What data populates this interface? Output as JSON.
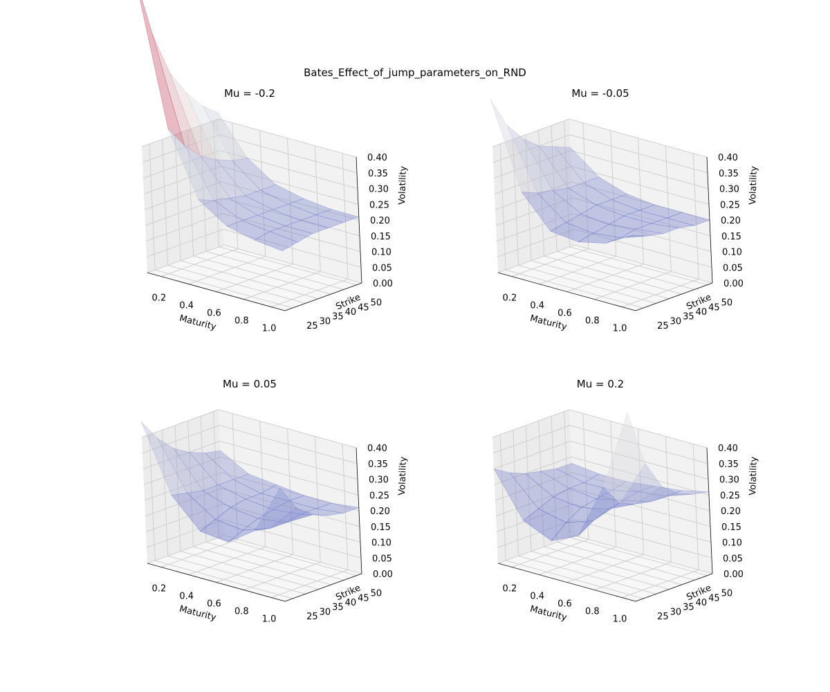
{
  "figure": {
    "suptitle": "Bates_Effect_of_jump_parameters_on_RND"
  },
  "axis_labels": {
    "x": "Maturity",
    "y": "Strike",
    "z": "Volatility"
  },
  "colors": {
    "pane": "#f2f2f2",
    "grid": "#cfcfcf",
    "low": "#3b4cc0",
    "high": "#b40426"
  },
  "chart_data": [
    {
      "type": "surface",
      "title": "Mu = -0.2",
      "xlabel": "Maturity",
      "ylabel": "Strike",
      "zlabel": "Volatility",
      "xlim": [
        0.1,
        1.1
      ],
      "ylim": [
        22,
        52
      ],
      "zlim": [
        0,
        0.4
      ],
      "xticks": [
        "0.2",
        "0.4",
        "0.6",
        "0.8",
        "1.0"
      ],
      "yticks": [
        "25",
        "30",
        "35",
        "40",
        "45",
        "50"
      ],
      "zticks": [
        "0.00",
        "0.05",
        "0.10",
        "0.15",
        "0.20",
        "0.25",
        "0.30",
        "0.35",
        "0.40"
      ],
      "maturity": [
        0.1,
        0.3,
        0.5,
        0.7,
        0.9,
        1.1
      ],
      "strike": [
        22,
        28,
        34,
        40,
        46,
        52
      ],
      "volatility": [
        [
          0.95,
          0.74,
          0.6,
          0.52,
          0.46,
          0.42
        ],
        [
          0.48,
          0.41,
          0.36,
          0.33,
          0.31,
          0.3
        ],
        [
          0.28,
          0.26,
          0.25,
          0.24,
          0.24,
          0.24
        ],
        [
          0.22,
          0.22,
          0.22,
          0.22,
          0.22,
          0.22
        ],
        [
          0.2,
          0.21,
          0.21,
          0.21,
          0.21,
          0.21
        ],
        [
          0.19,
          0.2,
          0.21,
          0.21,
          0.21,
          0.21
        ]
      ]
    },
    {
      "type": "surface",
      "title": "Mu = -0.05",
      "xlabel": "Maturity",
      "ylabel": "Strike",
      "zlabel": "Volatility",
      "xlim": [
        0.1,
        1.1
      ],
      "ylim": [
        22,
        52
      ],
      "zlim": [
        0,
        0.4
      ],
      "xticks": [
        "0.2",
        "0.4",
        "0.6",
        "0.8",
        "1.0"
      ],
      "yticks": [
        "25",
        "30",
        "35",
        "40",
        "45",
        "50"
      ],
      "zticks": [
        "0.00",
        "0.05",
        "0.10",
        "0.15",
        "0.20",
        "0.25",
        "0.30",
        "0.35",
        "0.40"
      ],
      "maturity": [
        0.1,
        0.3,
        0.5,
        0.7,
        0.9,
        1.1
      ],
      "strike": [
        22,
        28,
        34,
        40,
        46,
        52
      ],
      "volatility": [
        [
          0.55,
          0.45,
          0.39,
          0.35,
          0.33,
          0.31
        ],
        [
          0.28,
          0.26,
          0.25,
          0.24,
          0.24,
          0.24
        ],
        [
          0.18,
          0.19,
          0.2,
          0.21,
          0.21,
          0.21
        ],
        [
          0.17,
          0.18,
          0.19,
          0.2,
          0.2,
          0.2
        ],
        [
          0.19,
          0.19,
          0.2,
          0.2,
          0.2,
          0.2
        ],
        [
          0.24,
          0.22,
          0.21,
          0.21,
          0.2,
          0.2
        ]
      ]
    },
    {
      "type": "surface",
      "title": "Mu = 0.05",
      "xlabel": "Maturity",
      "ylabel": "Strike",
      "zlabel": "Volatility",
      "xlim": [
        0.1,
        1.1
      ],
      "ylim": [
        22,
        52
      ],
      "zlim": [
        0,
        0.4
      ],
      "xticks": [
        "0.2",
        "0.4",
        "0.6",
        "0.8",
        "1.0"
      ],
      "yticks": [
        "25",
        "30",
        "35",
        "40",
        "45",
        "50"
      ],
      "zticks": [
        "0.00",
        "0.05",
        "0.10",
        "0.15",
        "0.20",
        "0.25",
        "0.30",
        "0.35",
        "0.40"
      ],
      "maturity": [
        0.1,
        0.3,
        0.5,
        0.7,
        0.9,
        1.1
      ],
      "strike": [
        22,
        28,
        34,
        40,
        46,
        52
      ],
      "volatility": [
        [
          0.45,
          0.38,
          0.33,
          0.3,
          0.28,
          0.27
        ],
        [
          0.24,
          0.23,
          0.22,
          0.22,
          0.22,
          0.22
        ],
        [
          0.15,
          0.17,
          0.19,
          0.2,
          0.2,
          0.21
        ],
        [
          0.14,
          0.16,
          0.18,
          0.19,
          0.2,
          0.2
        ],
        [
          0.2,
          0.19,
          0.19,
          0.2,
          0.2,
          0.2
        ],
        [
          0.36,
          0.28,
          0.24,
          0.22,
          0.21,
          0.21
        ]
      ]
    },
    {
      "type": "surface",
      "title": "Mu = 0.2",
      "xlabel": "Maturity",
      "ylabel": "Strike",
      "zlabel": "Volatility",
      "xlim": [
        0.1,
        1.1
      ],
      "ylim": [
        22,
        52
      ],
      "zlim": [
        0,
        0.4
      ],
      "xticks": [
        "0.2",
        "0.4",
        "0.6",
        "0.8",
        "1.0"
      ],
      "yticks": [
        "25",
        "30",
        "35",
        "40",
        "45",
        "50"
      ],
      "zticks": [
        "0.00",
        "0.05",
        "0.10",
        "0.15",
        "0.20",
        "0.25",
        "0.30",
        "0.35",
        "0.40"
      ],
      "maturity": [
        0.1,
        0.3,
        0.5,
        0.7,
        0.9,
        1.1
      ],
      "strike": [
        22,
        28,
        34,
        40,
        46,
        52
      ],
      "volatility": [
        [
          0.3,
          0.27,
          0.25,
          0.24,
          0.23,
          0.23
        ],
        [
          0.16,
          0.18,
          0.2,
          0.21,
          0.21,
          0.22
        ],
        [
          0.12,
          0.16,
          0.19,
          0.2,
          0.21,
          0.22
        ],
        [
          0.16,
          0.19,
          0.21,
          0.22,
          0.23,
          0.23
        ],
        [
          0.34,
          0.27,
          0.25,
          0.24,
          0.24,
          0.24
        ],
        [
          0.6,
          0.42,
          0.33,
          0.29,
          0.27,
          0.26
        ]
      ]
    }
  ]
}
